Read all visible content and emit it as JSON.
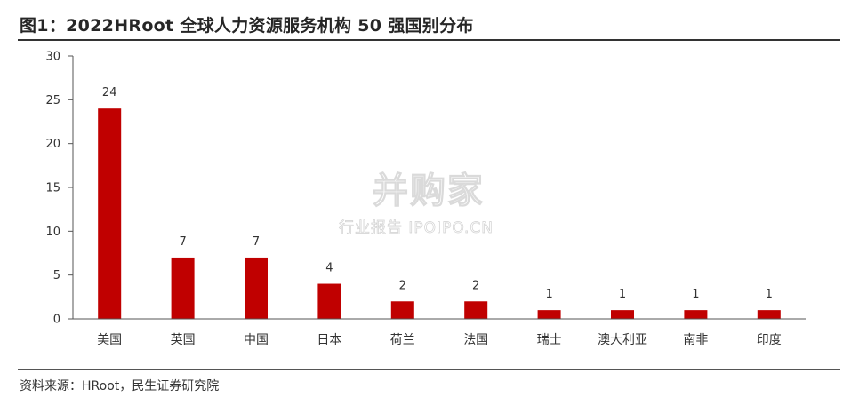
{
  "title": "图1：2022HRoot 全球人力资源服务机构 50 强国别分布",
  "source": "资料来源：HRoot，民生证券研究院",
  "watermark": {
    "main": "并购家",
    "sub": "行业报告 IPOIPO.CN"
  },
  "colors": {
    "bar": "#c00000",
    "axis": "#555555"
  },
  "chart_data": {
    "type": "bar",
    "categories": [
      "美国",
      "英国",
      "中国",
      "日本",
      "荷兰",
      "法国",
      "瑞士",
      "澳大利亚",
      "南非",
      "印度"
    ],
    "values": [
      24,
      7,
      7,
      4,
      2,
      2,
      1,
      1,
      1,
      1
    ],
    "yticks": [
      0,
      5,
      10,
      15,
      20,
      25,
      30
    ],
    "ylim": [
      0,
      30
    ],
    "grid": false,
    "legend": "none"
  }
}
